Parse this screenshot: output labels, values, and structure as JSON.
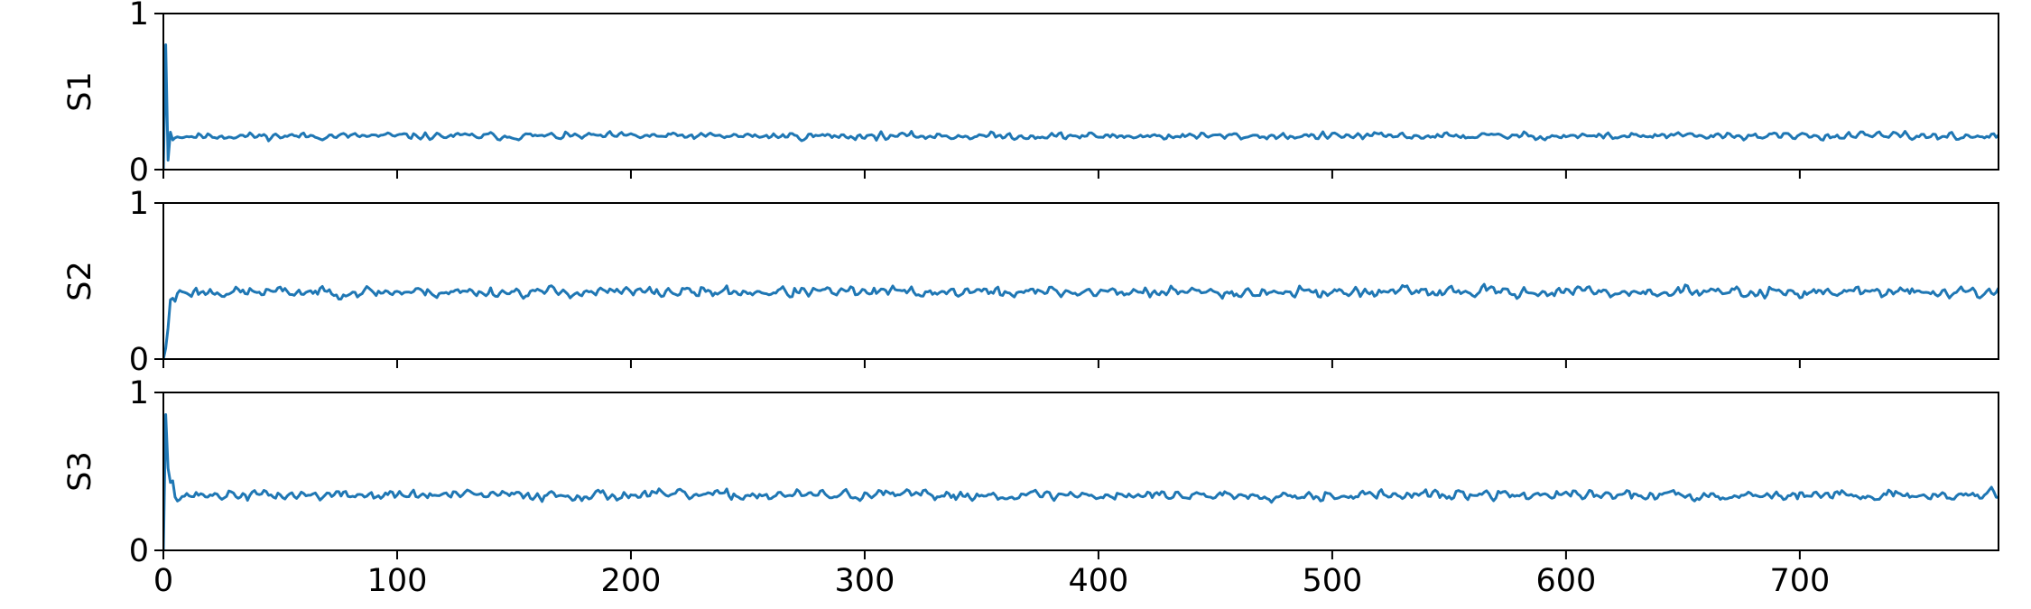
{
  "chart_data": {
    "type": "line",
    "layout": "stacked-subplots-shared-x",
    "xlim": [
      0,
      785
    ],
    "x_ticks": [
      0,
      100,
      200,
      300,
      400,
      500,
      600,
      700
    ],
    "x_tick_labels": [
      "0",
      "100",
      "200",
      "300",
      "400",
      "500",
      "600",
      "700"
    ],
    "line_color": "#1f77b4",
    "grid": false,
    "legend": "none",
    "panels": [
      {
        "ylabel": "S1",
        "ylim": [
          0,
          1
        ],
        "y_ticks": [
          0,
          1
        ],
        "y_tick_labels": [
          "0",
          "1"
        ],
        "series": {
          "initial": [
            [
              0,
              0.0
            ],
            [
              1,
              0.8
            ],
            [
              2,
              0.06
            ],
            [
              3,
              0.24
            ],
            [
              4,
              0.19
            ]
          ],
          "noise_mean": 0.215,
          "noise_amplitude": 0.045,
          "n_points": 786,
          "seed": 11
        }
      },
      {
        "ylabel": "S2",
        "ylim": [
          0,
          1
        ],
        "y_ticks": [
          0,
          1
        ],
        "y_tick_labels": [
          "0",
          "1"
        ],
        "series": {
          "initial": [
            [
              0,
              0.0
            ],
            [
              1,
              0.07
            ],
            [
              2,
              0.2
            ],
            [
              3,
              0.38
            ],
            [
              4,
              0.39
            ],
            [
              5,
              0.37
            ]
          ],
          "noise_mean": 0.43,
          "noise_amplitude": 0.07,
          "n_points": 786,
          "seed": 23
        }
      },
      {
        "ylabel": "S3",
        "ylim": [
          0,
          1
        ],
        "y_ticks": [
          0,
          1
        ],
        "y_tick_labels": [
          "0",
          "1"
        ],
        "series": {
          "initial": [
            [
              0,
              0.0
            ],
            [
              1,
              0.86
            ],
            [
              2,
              0.52
            ],
            [
              3,
              0.43
            ],
            [
              4,
              0.44
            ]
          ],
          "noise_mean": 0.35,
          "noise_amplitude": 0.065,
          "n_points": 786,
          "seed": 37
        }
      }
    ]
  }
}
